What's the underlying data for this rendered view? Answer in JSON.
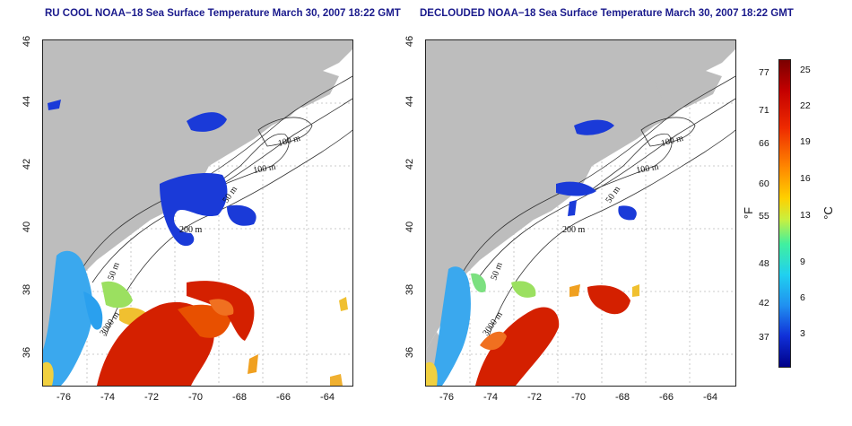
{
  "panels": [
    {
      "title": "RU COOL NOAA−18 Sea Surface Temperature March 30, 2007 18:22 GMT"
    },
    {
      "title": "DECLOUDED NOAA−18 Sea Surface Temperature March 30, 2007 18:22 GMT"
    }
  ],
  "axes": {
    "x_ticks": [
      "-76",
      "-74",
      "-72",
      "-70",
      "-68",
      "-66",
      "-64"
    ],
    "y_ticks": [
      "36",
      "38",
      "40",
      "42",
      "44",
      "46"
    ]
  },
  "contours": {
    "labels": [
      "100 m",
      "100 m",
      "50 m",
      "200 m",
      "50 m",
      "3000 m"
    ]
  },
  "colorbar": {
    "unit_f": "°F",
    "unit_c": "°C",
    "f_ticks": [
      "77",
      "71",
      "66",
      "60",
      "55",
      "48",
      "42",
      "37"
    ],
    "c_ticks": [
      "25",
      "22",
      "19",
      "16",
      "13",
      "9",
      "6",
      "3"
    ]
  },
  "colors": {
    "land": "#bdbdbd",
    "title": "#1a1a8c",
    "warm": "#d42000",
    "cold": "#1a3ad8"
  }
}
